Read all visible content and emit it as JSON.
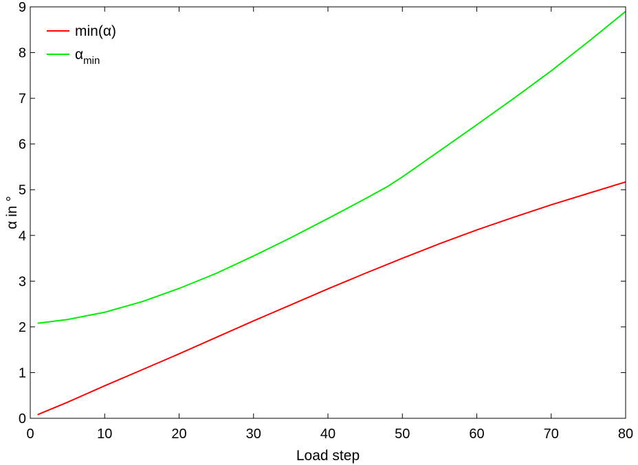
{
  "chart_data": {
    "type": "line",
    "xlabel": "Load step",
    "ylabel": "α in °",
    "xlim": [
      0,
      80
    ],
    "ylim": [
      0,
      9
    ],
    "xticks": [
      "0",
      "10",
      "20",
      "30",
      "40",
      "50",
      "60",
      "70",
      "80"
    ],
    "yticks": [
      "0",
      "1",
      "2",
      "3",
      "4",
      "5",
      "6",
      "7",
      "8",
      "9"
    ],
    "grid": false,
    "legend_position": "top-left",
    "series": [
      {
        "name": "min(α)",
        "color": "#ff0000",
        "x": [
          1,
          5,
          10,
          15,
          20,
          25,
          30,
          35,
          40,
          45,
          50,
          55,
          60,
          65,
          70,
          75,
          80
        ],
        "y": [
          0.08,
          0.35,
          0.71,
          1.06,
          1.41,
          1.77,
          2.13,
          2.48,
          2.83,
          3.17,
          3.5,
          3.82,
          4.12,
          4.4,
          4.67,
          4.92,
          5.17
        ]
      },
      {
        "name": "α",
        "name_subscript": "min",
        "color": "#00ee00",
        "x": [
          1,
          5,
          10,
          15,
          20,
          25,
          30,
          35,
          40,
          45,
          48,
          50,
          55,
          60,
          65,
          70,
          75,
          80
        ],
        "y": [
          2.08,
          2.16,
          2.32,
          2.55,
          2.84,
          3.17,
          3.55,
          3.95,
          4.37,
          4.8,
          5.07,
          5.28,
          5.85,
          6.42,
          7.0,
          7.6,
          8.24,
          8.9
        ]
      }
    ]
  }
}
